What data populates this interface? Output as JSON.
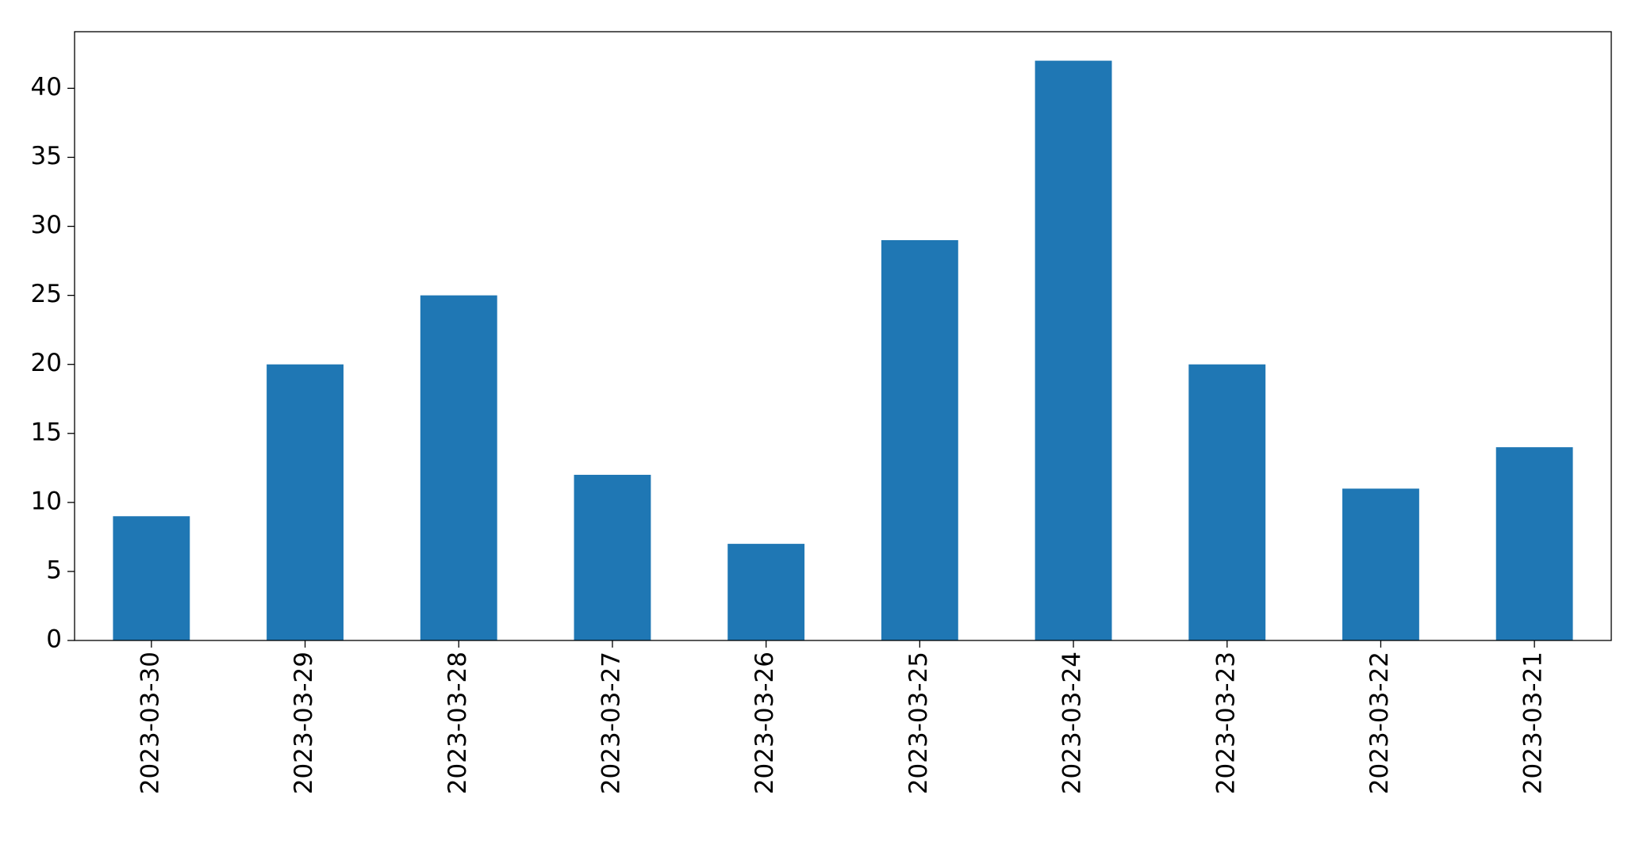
{
  "chart_data": {
    "type": "bar",
    "categories": [
      "2023-03-30",
      "2023-03-29",
      "2023-03-28",
      "2023-03-27",
      "2023-03-26",
      "2023-03-25",
      "2023-03-24",
      "2023-03-23",
      "2023-03-22",
      "2023-03-21"
    ],
    "values": [
      9,
      20,
      25,
      12,
      7,
      29,
      42,
      20,
      11,
      14
    ],
    "color": "#1f77b4",
    "ylim": [
      0,
      44.1
    ],
    "yticks": [
      0,
      5,
      10,
      15,
      20,
      25,
      30,
      35,
      40
    ],
    "grid": false
  }
}
